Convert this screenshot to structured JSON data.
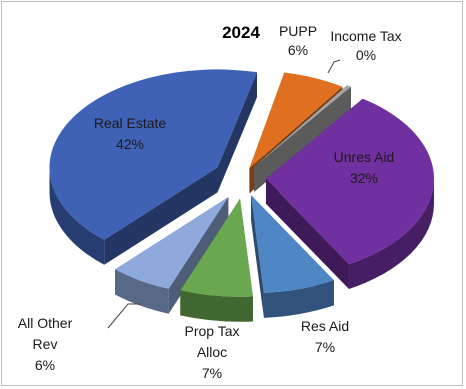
{
  "chart_data": {
    "type": "pie",
    "title": "2024",
    "categories": [
      "PUPP",
      "Income Tax",
      "Unres Aid",
      "Res Aid",
      "Prop Tax Alloc",
      "All Other Rev",
      "Real Estate"
    ],
    "values": [
      6,
      0,
      32,
      7,
      7,
      6,
      42
    ],
    "value_labels": [
      "6%",
      "0%",
      "32%",
      "7%",
      "7%",
      "6%",
      "42%"
    ],
    "label_lines": {
      "prop_tax": [
        "Prop Tax",
        "Alloc"
      ],
      "all_other": [
        "All Other",
        "Rev"
      ]
    },
    "colors": {
      "PUPP": "#e07020",
      "Income Tax": "#a5a5a5",
      "Unres Aid": "#7030a0",
      "Res Aid": "#4f86c6",
      "Prop Tax Alloc": "#6aa84f",
      "All Other Rev": "#8ea9db",
      "Real Estate": "#3f62b6"
    },
    "exploded": true,
    "legend": "none"
  }
}
